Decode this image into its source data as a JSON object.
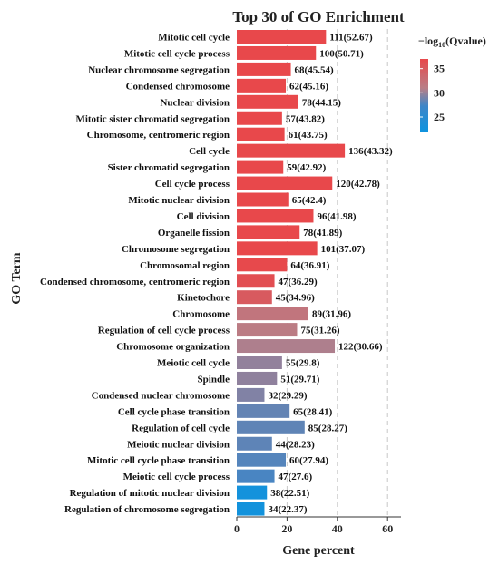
{
  "chart_data": {
    "type": "bar",
    "orientation": "horizontal",
    "title": "Top 30 of GO Enrichment",
    "xlabel": "Gene percent",
    "ylabel": "GO Term",
    "xlim": [
      0,
      65
    ],
    "xticks": [
      0,
      20,
      40,
      60
    ],
    "grid": "dashed vertical",
    "legend": {
      "title_main": "−log",
      "title_sub": "10",
      "title_rest": "(Qvalue)",
      "ticks": [
        35,
        30,
        25
      ],
      "range": [
        22,
        37
      ],
      "colors": [
        "#0f93de",
        "#3e86c8",
        "#b97e87",
        "#e8484b"
      ],
      "position": "top-right"
    },
    "categories": [
      "Mitotic cell cycle",
      "Mitotic cell cycle process",
      "Nuclear chromosome segregation",
      "Condensed chromosome",
      "Nuclear division",
      "Mitotic sister chromatid segregation",
      "Chromosome, centromeric region",
      "Cell cycle",
      "Sister chromatid segregation",
      "Cell cycle process",
      "Mitotic nuclear division",
      "Cell division",
      "Organelle fission",
      "Chromosome segregation",
      "Chromosomal region",
      "Condensed chromosome, centromeric region",
      "Kinetochore",
      "Chromosome",
      "Regulation of cell cycle process",
      "Chromosome organization",
      "Meiotic cell cycle",
      "Spindle",
      "Condensed nuclear chromosome",
      "Cell cycle phase transition",
      "Regulation of cell cycle",
      "Meiotic nuclear division",
      "Mitotic cell cycle phase transition",
      "Meiotic cell cycle process",
      "Regulation of mitotic nuclear division",
      "Regulation of chromosome segregation"
    ],
    "values": [
      35.5,
      31.5,
      21.5,
      19.5,
      24.5,
      18,
      19,
      43,
      18.5,
      38,
      20.5,
      30.5,
      25,
      32,
      20,
      15,
      14,
      28.5,
      24,
      39,
      18,
      16,
      11,
      21,
      27,
      14,
      19.5,
      15,
      12,
      11
    ],
    "labels": [
      "111(52.67)",
      "100(50.71)",
      "68(45.54)",
      "62(45.16)",
      "78(44.15)",
      "57(43.82)",
      "61(43.75)",
      "136(43.32)",
      "59(42.92)",
      "120(42.78)",
      "65(42.4)",
      "96(41.98)",
      "78(41.89)",
      "101(37.07)",
      "64(36.91)",
      "47(36.29)",
      "45(34.96)",
      "89(31.96)",
      "75(31.26)",
      "122(30.66)",
      "55(29.8)",
      "51(29.71)",
      "32(29.29)",
      "65(28.41)",
      "85(28.27)",
      "44(28.23)",
      "60(27.94)",
      "47(27.6)",
      "38(22.51)",
      "34(22.37)"
    ]
  }
}
